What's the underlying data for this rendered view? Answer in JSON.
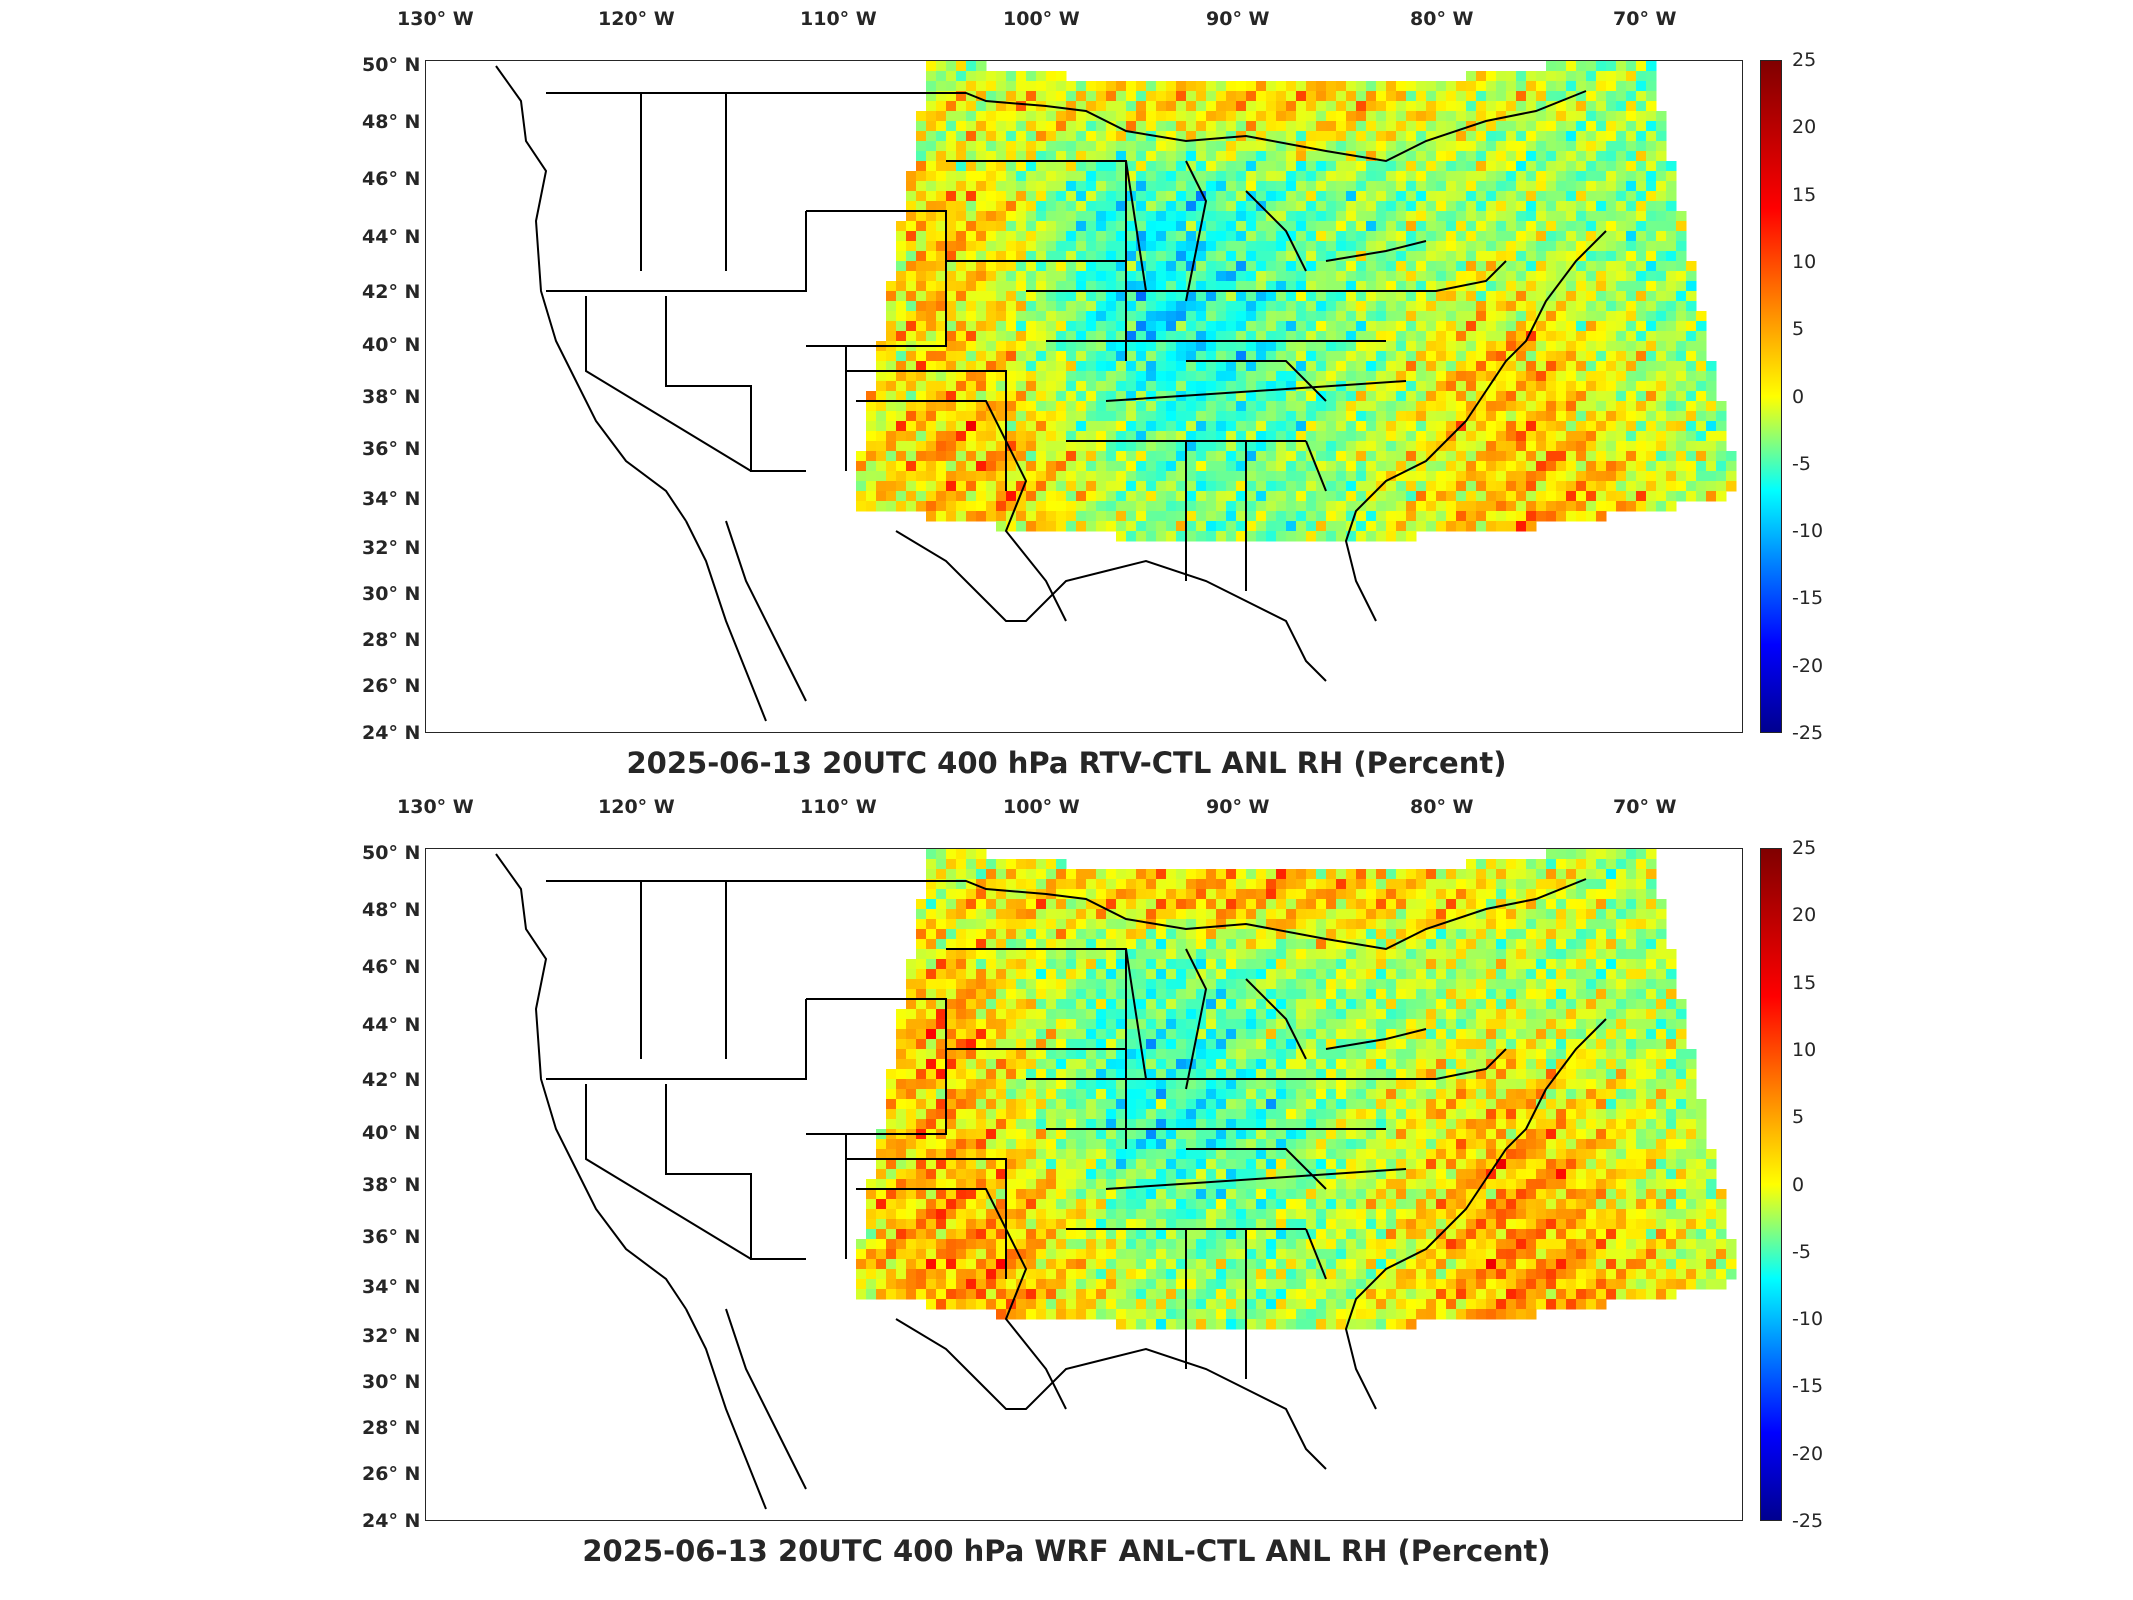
{
  "panels": [
    {
      "title": "2025-06-13 20UTC 400 hPa RTV-CTL ANL RH (Percent)",
      "lon_labels": [
        "130° W",
        "120° W",
        "110° W",
        "100° W",
        "90° W",
        "80° W",
        "70° W"
      ],
      "lat_labels": [
        "50° N",
        "48° N",
        "46° N",
        "44° N",
        "42° N",
        "40° N",
        "38° N",
        "36° N",
        "34° N",
        "32° N",
        "30° N",
        "28° N",
        "26° N",
        "24° N"
      ]
    },
    {
      "title": "2025-06-13 20UTC 400 hPa WRF ANL-CTL ANL RH (Percent)",
      "lon_labels": [
        "130° W",
        "120° W",
        "110° W",
        "100° W",
        "90° W",
        "80° W",
        "70° W"
      ],
      "lat_labels": [
        "50° N",
        "48° N",
        "46° N",
        "44° N",
        "42° N",
        "40° N",
        "38° N",
        "36° N",
        "34° N",
        "32° N",
        "30° N",
        "28° N",
        "26° N",
        "24° N"
      ]
    }
  ],
  "colorbar": {
    "ticks": [
      "25",
      "20",
      "15",
      "10",
      "5",
      "0",
      "-5",
      "-10",
      "-15",
      "-20",
      "-25"
    ],
    "range": [
      -25,
      25
    ],
    "colormap": "jet"
  },
  "map": {
    "lon_range": [
      -131,
      -65
    ],
    "lat_range": [
      24,
      50
    ],
    "features": [
      "state-boundaries",
      "coastlines",
      "RH-difference-field"
    ]
  }
}
